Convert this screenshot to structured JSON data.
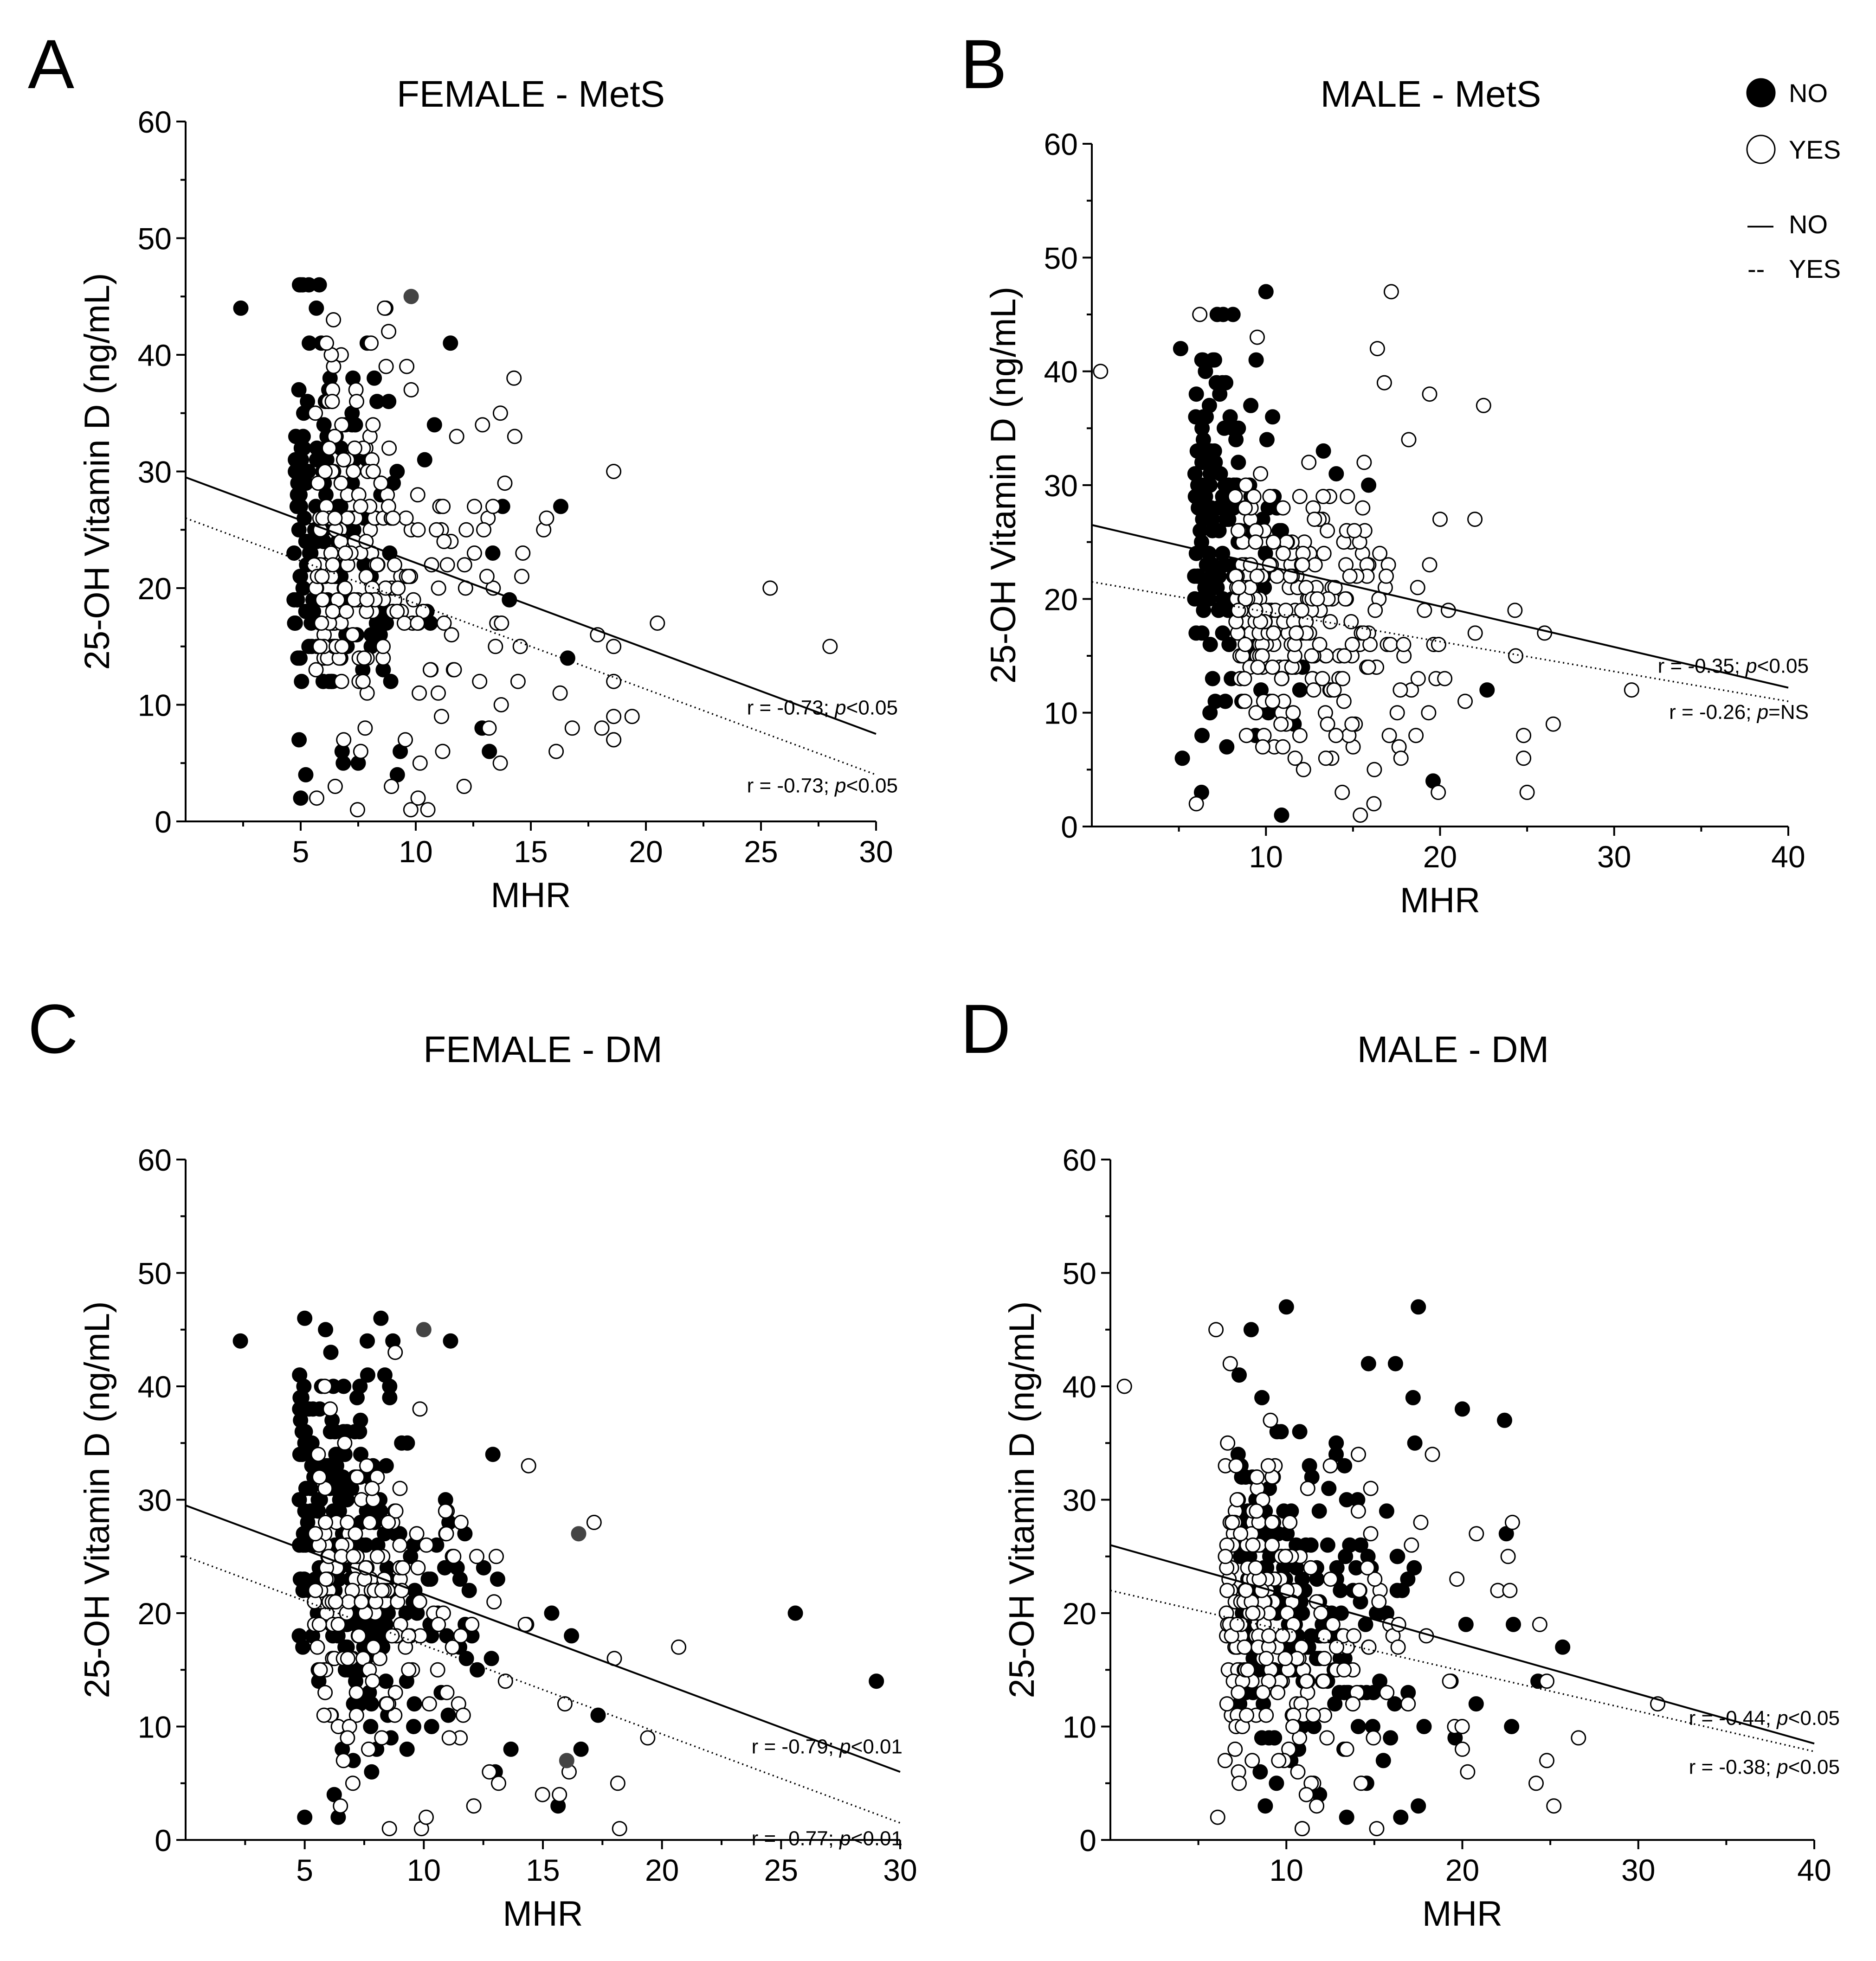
{
  "legend": {
    "markers": [
      {
        "label": "NO",
        "style": "filled"
      },
      {
        "label": "YES",
        "style": "open"
      }
    ],
    "lines": [
      {
        "label": "NO",
        "style": "solid",
        "glyph": "—"
      },
      {
        "label": "YES",
        "style": "dashed",
        "glyph": "--"
      }
    ]
  },
  "chart_data": [
    {
      "panel": "A",
      "type": "scatter",
      "title": "FEMALE - MetS",
      "xlabel": "MHR",
      "ylabel": "25-OH Vitamin D (ng/mL)",
      "xlim": [
        0,
        30
      ],
      "ylim": [
        0,
        60
      ],
      "xticks": [
        5,
        10,
        15,
        20,
        25,
        30
      ],
      "yticks": [
        0,
        10,
        20,
        30,
        40,
        50,
        60
      ],
      "series": [
        {
          "name": "NO",
          "marker": "filled",
          "seed": 11,
          "n": 170,
          "x_center": 5.8,
          "x_spread": 2.0,
          "y_intercept": 30.5,
          "y_slope": -0.75,
          "y_spread": 9,
          "highlights": [
            [
              5.0,
              46
            ],
            [
              8.7,
              44
            ],
            [
              2.4,
              44
            ],
            [
              16.3,
              27
            ],
            [
              16.6,
              14
            ],
            [
              13.2,
              6
            ],
            [
              5.0,
              2
            ],
            [
              6.8,
              6
            ],
            [
              7.5,
              5
            ],
            [
              9.2,
              4
            ]
          ]
        },
        {
          "name": "YES",
          "marker": "open",
          "seed": 23,
          "n": 220,
          "x_center": 7.3,
          "x_spread": 3.2,
          "y_intercept": 27,
          "y_slope": -0.65,
          "y_spread": 8,
          "highlights": [
            [
              12.9,
              34
            ],
            [
              14.3,
              33
            ],
            [
              25.4,
              20
            ],
            [
              20.5,
              17
            ],
            [
              17.9,
              16
            ],
            [
              28.0,
              15
            ],
            [
              19.4,
              9
            ],
            [
              16.8,
              8
            ],
            [
              16.1,
              6
            ],
            [
              12.1,
              3
            ],
            [
              10.1,
              2
            ],
            [
              6.5,
              3
            ]
          ]
        }
      ],
      "extra_points": [
        {
          "x": 9.8,
          "y": 45,
          "marker": "filled-gray"
        }
      ],
      "fits": [
        {
          "name": "NO",
          "style": "solid",
          "x": [
            0,
            30
          ],
          "y": [
            29.5,
            7.5
          ],
          "label": "r = -0.73; ",
          "p": "p",
          "ptext": "<0.05"
        },
        {
          "name": "YES",
          "style": "dotted",
          "x": [
            0,
            30
          ],
          "y": [
            26,
            4
          ],
          "label": "r = -0.73; ",
          "p": "p",
          "ptext": "<0.05"
        }
      ]
    },
    {
      "panel": "B",
      "type": "scatter",
      "title": "MALE - MetS",
      "xlabel": "MHR",
      "ylabel": "25-OH Vitamin D (ng/mL)",
      "xlim": [
        0,
        40
      ],
      "ylim": [
        0,
        60
      ],
      "xticks": [
        10,
        20,
        30,
        40
      ],
      "yticks": [
        0,
        10,
        20,
        30,
        40,
        50,
        60
      ],
      "series": [
        {
          "name": "NO",
          "marker": "filled",
          "seed": 37,
          "n": 150,
          "x_center": 7.0,
          "x_spread": 2.0,
          "y_intercept": 33,
          "y_slope": -0.9,
          "y_spread": 8,
          "highlights": [
            [
              10.0,
              47
            ],
            [
              7.2,
              45
            ],
            [
              5.1,
              42
            ],
            [
              13.3,
              33
            ],
            [
              15.9,
              30
            ],
            [
              22.7,
              12
            ],
            [
              19.6,
              4
            ],
            [
              10.9,
              1
            ],
            [
              5.2,
              6
            ],
            [
              6.3,
              3
            ]
          ]
        },
        {
          "name": "YES",
          "marker": "open",
          "seed": 41,
          "n": 260,
          "x_center": 10.5,
          "x_spread": 4.2,
          "y_intercept": 22,
          "y_slope": -0.35,
          "y_spread": 6.5,
          "highlights": [
            [
              0.5,
              40
            ],
            [
              17.2,
              47
            ],
            [
              16.4,
              42
            ],
            [
              16.8,
              39
            ],
            [
              19.4,
              38
            ],
            [
              22.5,
              37
            ],
            [
              18.2,
              34
            ],
            [
              20.0,
              27
            ],
            [
              22.0,
              27
            ],
            [
              24.3,
              19
            ],
            [
              26.0,
              17
            ],
            [
              31.0,
              12
            ],
            [
              26.5,
              9
            ],
            [
              25.0,
              3
            ],
            [
              19.9,
              3
            ],
            [
              16.2,
              2
            ],
            [
              6.0,
              2
            ],
            [
              9.5,
              43
            ],
            [
              6.2,
              45
            ]
          ]
        }
      ],
      "extra_points": [],
      "fits": [
        {
          "name": "NO",
          "style": "solid",
          "x": [
            0,
            40
          ],
          "y": [
            26.5,
            12.2
          ],
          "label": "r = -0.35; ",
          "p": "p",
          "ptext": "<0.05"
        },
        {
          "name": "YES",
          "style": "dotted",
          "x": [
            0,
            40
          ],
          "y": [
            21.5,
            11
          ],
          "label": "r = -0.26; ",
          "p": "p",
          "ptext": "=NS"
        }
      ]
    },
    {
      "panel": "C",
      "type": "scatter",
      "title": "FEMALE - DM",
      "xlabel": "MHR",
      "ylabel": "25-OH Vitamin D (ng/mL)",
      "xlim": [
        0,
        30
      ],
      "ylim": [
        0,
        60
      ],
      "xticks": [
        5,
        10,
        15,
        20,
        25,
        30
      ],
      "yticks": [
        0,
        10,
        20,
        30,
        40,
        50,
        60
      ],
      "series": [
        {
          "name": "NO",
          "marker": "filled",
          "seed": 53,
          "n": 260,
          "x_center": 6.2,
          "x_spread": 2.6,
          "y_intercept": 30.5,
          "y_slope": -0.8,
          "y_spread": 9,
          "highlights": [
            [
              5.0,
              46
            ],
            [
              8.2,
              46
            ],
            [
              2.3,
              44
            ],
            [
              12.9,
              34
            ],
            [
              25.6,
              20
            ],
            [
              29.0,
              14
            ],
            [
              16.6,
              8
            ],
            [
              13.0,
              6
            ],
            [
              5.0,
              2
            ],
            [
              16.2,
              18
            ]
          ]
        },
        {
          "name": "YES",
          "marker": "open",
          "seed": 61,
          "n": 160,
          "x_center": 7.0,
          "x_spread": 3.0,
          "y_intercept": 26,
          "y_slope": -0.65,
          "y_spread": 8,
          "highlights": [
            [
              14.4,
              33
            ],
            [
              20.7,
              17
            ],
            [
              18.0,
              16
            ],
            [
              19.4,
              9
            ],
            [
              16.1,
              6
            ],
            [
              12.1,
              3
            ],
            [
              10.1,
              2
            ],
            [
              6.5,
              3
            ],
            [
              8.8,
              43
            ]
          ]
        }
      ],
      "extra_points": [
        {
          "x": 10.0,
          "y": 45,
          "marker": "filled-gray"
        },
        {
          "x": 16.5,
          "y": 27,
          "marker": "filled-gray"
        },
        {
          "x": 16.0,
          "y": 7,
          "marker": "filled-gray"
        }
      ],
      "fits": [
        {
          "name": "NO",
          "style": "solid",
          "x": [
            0,
            30
          ],
          "y": [
            29.5,
            6
          ],
          "label": "r = -0.79; ",
          "p": "p",
          "ptext": "<0.01"
        },
        {
          "name": "YES",
          "style": "dotted",
          "x": [
            0,
            30
          ],
          "y": [
            25,
            1.5
          ],
          "label": "r = -0.77; ",
          "p": "p",
          "ptext": "<0.01"
        }
      ]
    },
    {
      "panel": "D",
      "type": "scatter",
      "title": "MALE - DM",
      "xlabel": "MHR",
      "ylabel": "25-OH Vitamin D (ng/mL)",
      "xlim": [
        0,
        40
      ],
      "ylim": [
        0,
        60
      ],
      "xticks": [
        10,
        20,
        30,
        40
      ],
      "yticks": [
        0,
        10,
        20,
        30,
        40,
        50,
        60
      ],
      "series": [
        {
          "name": "NO",
          "marker": "filled",
          "seed": 71,
          "n": 230,
          "x_center": 9.2,
          "x_spread": 3.6,
          "y_intercept": 26,
          "y_slope": -0.45,
          "y_spread": 8,
          "highlights": [
            [
              10.0,
              47
            ],
            [
              17.5,
              47
            ],
            [
              16.2,
              42
            ],
            [
              17.2,
              39
            ],
            [
              20.0,
              38
            ],
            [
              22.4,
              37
            ],
            [
              22.5,
              27
            ],
            [
              25.7,
              17
            ],
            [
              24.3,
              14
            ],
            [
              22.8,
              10
            ],
            [
              16.5,
              2
            ],
            [
              10.9,
              1
            ],
            [
              17.5,
              3
            ],
            [
              8.0,
              45
            ]
          ]
        },
        {
          "name": "YES",
          "marker": "open",
          "seed": 83,
          "n": 220,
          "x_center": 8.5,
          "x_spread": 3.6,
          "y_intercept": 22,
          "y_slope": -0.35,
          "y_spread": 7,
          "highlights": [
            [
              0.8,
              40
            ],
            [
              6.0,
              45
            ],
            [
              18.3,
              34
            ],
            [
              20.8,
              27
            ],
            [
              22.6,
              25
            ],
            [
              22.7,
              22
            ],
            [
              24.4,
              19
            ],
            [
              26.6,
              9
            ],
            [
              31.1,
              12
            ],
            [
              25.2,
              3
            ],
            [
              20.0,
              8
            ],
            [
              20.3,
              6
            ],
            [
              10.9,
              1
            ],
            [
              6.1,
              2
            ],
            [
              12.5,
              33
            ]
          ]
        }
      ],
      "extra_points": [],
      "fits": [
        {
          "name": "NO",
          "style": "solid",
          "x": [
            0,
            40
          ],
          "y": [
            26,
            8.5
          ],
          "label": "r = -0.44; ",
          "p": "p",
          "ptext": "<0.05"
        },
        {
          "name": "YES",
          "style": "dotted",
          "x": [
            0,
            40
          ],
          "y": [
            22,
            7.8
          ],
          "label": "r = -0.38; ",
          "p": "p",
          "ptext": "<0.05"
        }
      ]
    }
  ]
}
